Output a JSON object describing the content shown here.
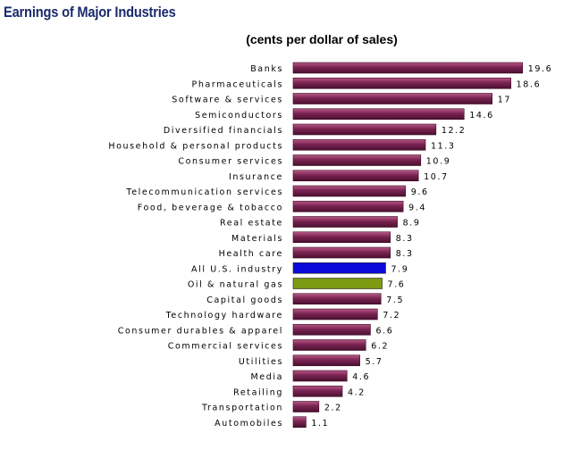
{
  "title": "Earnings of Major Industries",
  "subtitle": "(cents per dollar of sales)",
  "colors": {
    "default_bar": "#7a2352",
    "all_us_industry": "#0a0ad8",
    "oil_natural_gas": "#7c9a12",
    "title": "#1a2a6c"
  },
  "chart_data": {
    "type": "bar",
    "orientation": "horizontal",
    "title": "Earnings of Major Industries",
    "subtitle": "(cents per dollar of sales)",
    "xlim": [
      0,
      20
    ],
    "grid": false,
    "legend": "none",
    "categories": [
      "Banks",
      "Pharmaceuticals",
      "Software & services",
      "Semiconductors",
      "Diversified financials",
      "Household & personal products",
      "Consumer services",
      "Insurance",
      "Telecommunication services",
      "Food, beverage & tobacco",
      "Real estate",
      "Materials",
      "Health care",
      "All U.S. industry",
      "Oil & natural gas",
      "Capital goods",
      "Technology hardware",
      "Consumer durables & apparel",
      "Commercial services",
      "Utilities",
      "Media",
      "Retailing",
      "Transportation",
      "Automobiles"
    ],
    "values": [
      19.6,
      18.6,
      17,
      14.6,
      12.2,
      11.3,
      10.9,
      10.7,
      9.6,
      9.4,
      8.9,
      8.3,
      8.3,
      7.9,
      7.6,
      7.5,
      7.2,
      6.6,
      6.2,
      5.7,
      4.6,
      4.2,
      2.2,
      1.1
    ],
    "value_labels": [
      "19.6",
      "18.6",
      "17",
      "14.6",
      "12.2",
      "11.3",
      "10.9",
      "10.7",
      "9.6",
      "9.4",
      "8.9",
      "8.3",
      "8.3",
      "7.9",
      "7.6",
      "7.5",
      "7.2",
      "6.6",
      "6.2",
      "5.7",
      "4.6",
      "4.2",
      "2.2",
      "1.1"
    ],
    "highlight": {
      "All U.S. industry": "#0a0ad8",
      "Oil & natural gas": "#7c9a12"
    }
  }
}
